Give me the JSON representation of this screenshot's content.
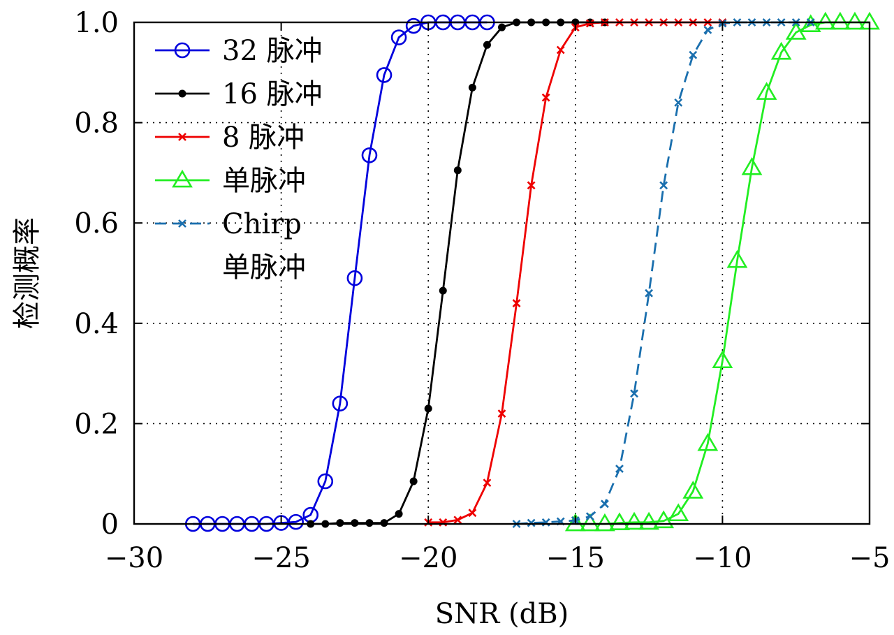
{
  "chart_data": {
    "type": "line",
    "xlabel": "SNR (dB)",
    "ylabel": "检测概率",
    "xlim": [
      -30,
      -5
    ],
    "ylim": [
      0,
      1
    ],
    "x_ticks": [
      -30,
      -25,
      -20,
      -15,
      -10,
      -5
    ],
    "x_tick_labels": [
      "−30",
      "−25",
      "−20",
      "−15",
      "−10",
      "−5"
    ],
    "y_ticks": [
      0,
      0.2,
      0.4,
      0.6,
      0.8,
      1.0
    ],
    "y_tick_labels": [
      "0",
      "0.2",
      "0.4",
      "0.6",
      "0.8",
      "1.0"
    ],
    "grid": true,
    "legend_position": "top-left",
    "series": [
      {
        "name": "32 脉冲",
        "color": "#0000dd",
        "marker": "circle",
        "dash": "solid",
        "x": [
          -28,
          -27.5,
          -27,
          -26.5,
          -26,
          -25.5,
          -25,
          -24.5,
          -24,
          -23.5,
          -23,
          -22.5,
          -22,
          -21.5,
          -21,
          -20.5,
          -20,
          -19.5,
          -19,
          -18.5,
          -18
        ],
        "y": [
          0,
          0,
          0,
          0,
          0,
          0,
          0.002,
          0.004,
          0.018,
          0.085,
          0.24,
          0.49,
          0.735,
          0.895,
          0.97,
          0.993,
          1,
          1,
          1,
          1,
          1
        ]
      },
      {
        "name": "16 脉冲",
        "color": "#000000",
        "marker": "dot",
        "dash": "solid",
        "x": [
          -24,
          -23.5,
          -23,
          -22.5,
          -22,
          -21.5,
          -21,
          -20.5,
          -20,
          -19.5,
          -19,
          -18.5,
          -18,
          -17.5,
          -17,
          -16.5,
          -16,
          -15.5,
          -15,
          -14.5,
          -14
        ],
        "y": [
          0,
          0,
          0.002,
          0.002,
          0.002,
          0.002,
          0.02,
          0.085,
          0.23,
          0.465,
          0.705,
          0.87,
          0.955,
          0.99,
          1,
          1,
          1,
          1,
          1,
          1,
          1
        ]
      },
      {
        "name": "8 脉冲",
        "color": "#ee0000",
        "marker": "x",
        "dash": "solid",
        "x": [
          -20,
          -19.5,
          -19,
          -18.5,
          -18,
          -17.5,
          -17,
          -16.5,
          -16,
          -15.5,
          -15,
          -14.5,
          -14,
          -13.5,
          -13,
          -12.5,
          -12,
          -11.5,
          -11,
          -10.5,
          -10
        ],
        "y": [
          0.003,
          0.003,
          0.008,
          0.022,
          0.082,
          0.22,
          0.44,
          0.675,
          0.85,
          0.945,
          0.99,
          0.998,
          1,
          1,
          1,
          1,
          1,
          1,
          1,
          1,
          1
        ]
      },
      {
        "name": "单脉冲",
        "color": "#22ee22",
        "marker": "triangle",
        "dash": "solid",
        "x": [
          -15,
          -14.5,
          -14,
          -13.5,
          -13,
          -12.5,
          -12,
          -11.5,
          -11,
          -10.5,
          -10,
          -9.5,
          -9,
          -8.5,
          -8,
          -7.5,
          -7,
          -6.5,
          -6,
          -5.5,
          -5
        ],
        "y": [
          0,
          0,
          0,
          0.002,
          0.003,
          0.003,
          0.006,
          0.02,
          0.065,
          0.16,
          0.325,
          0.525,
          0.71,
          0.86,
          0.94,
          0.98,
          0.995,
          1,
          1,
          1,
          1
        ]
      },
      {
        "name": "Chirp\n单脉冲",
        "color": "#1a6fae",
        "marker": "x",
        "dash": "dashed",
        "x": [
          -17,
          -16.5,
          -16,
          -15.5,
          -15,
          -14.5,
          -14,
          -13.5,
          -13,
          -12.5,
          -12,
          -11.5,
          -11,
          -10.5,
          -10,
          -9.5,
          -9,
          -8.5,
          -8,
          -7.5,
          -7
        ],
        "y": [
          0,
          0.002,
          0.003,
          0.005,
          0.007,
          0.015,
          0.04,
          0.11,
          0.26,
          0.46,
          0.675,
          0.84,
          0.935,
          0.985,
          0.998,
          1,
          1,
          1,
          1,
          1,
          1
        ]
      }
    ]
  }
}
